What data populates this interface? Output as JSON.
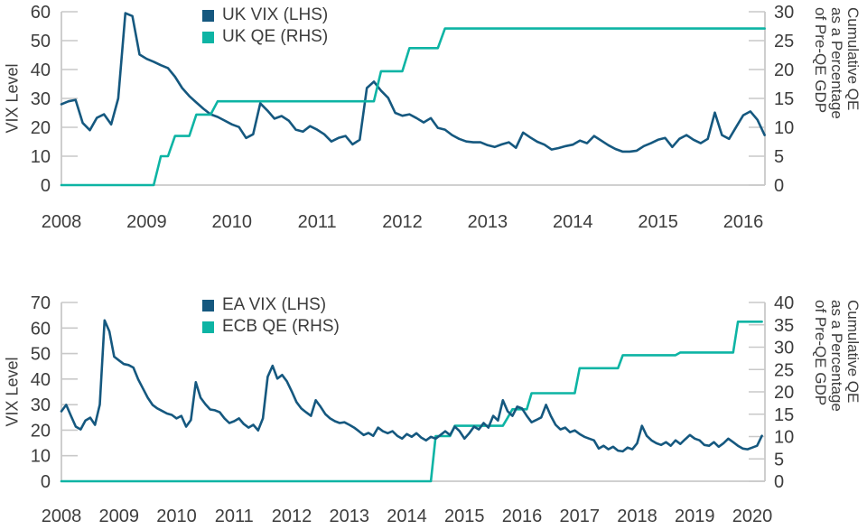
{
  "colors": {
    "vix_blue": "#15587f",
    "qe_teal": "#0db4a4",
    "axis_gray": "#c9c9c9",
    "text_dark": "#3d3d3d"
  },
  "chart_data": [
    {
      "type": "line",
      "title": "",
      "ylabel_left": "VIX Level",
      "ylabel_right_lines": [
        "Cumulative QE",
        "as a Percentage",
        "of Pre-QE GDP"
      ],
      "x_tick_labels": [
        "2008",
        "2009",
        "2010",
        "2011",
        "2012",
        "2013",
        "2014",
        "2015",
        "2016"
      ],
      "left_axis": {
        "min": 0,
        "max": 60,
        "ticks": [
          "60",
          "50",
          "40",
          "30",
          "20",
          "10",
          "0"
        ]
      },
      "right_axis": {
        "min": 0,
        "max": 30,
        "ticks": [
          "30",
          "25",
          "20",
          "15",
          "10",
          "5",
          "0"
        ]
      },
      "legend": [
        {
          "label": "UK VIX (LHS)",
          "color_key": "vix_blue"
        },
        {
          "label": "UK QE (RHS)",
          "color_key": "qe_teal"
        }
      ],
      "x_start": "2008-01",
      "x_step": "month",
      "series": [
        {
          "name": "UK VIX (LHS)",
          "axis": "left",
          "color_key": "vix_blue",
          "values": [
            28,
            29,
            29.5,
            21.5,
            19,
            23.3,
            24.5,
            21,
            30,
            59.5,
            58.5,
            45.2,
            43.7,
            42.7,
            41.5,
            40.5,
            37.5,
            33.6,
            30.8,
            28.6,
            26.4,
            24.5,
            23.6,
            22.3,
            21,
            20.1,
            16.3,
            17.6,
            28.3,
            25.8,
            23,
            23.9,
            22.3,
            19.2,
            18.5,
            20.4,
            19.2,
            17.6,
            15.1,
            16.3,
            17,
            14.1,
            15.7,
            33.6,
            35.8,
            32.7,
            30.2,
            25,
            24,
            24.5,
            23.2,
            21.7,
            23.2,
            19.8,
            19.2,
            17.3,
            16,
            15.1,
            14.8,
            14.8,
            13.8,
            13.2,
            14.1,
            14.8,
            12.9,
            18.2,
            16.5,
            15,
            14,
            12.3,
            12.8,
            13.5,
            14,
            15.4,
            14.5,
            17,
            15.4,
            13.8,
            12.5,
            11.6,
            11.6,
            11.9,
            13.5,
            14.5,
            15.7,
            16.3,
            13.2,
            16,
            17.3,
            15.7,
            14.5,
            16,
            25.1,
            17.3,
            16,
            20.1,
            24.2,
            25.5,
            22.6,
            17.3
          ]
        },
        {
          "name": "UK QE (RHS)",
          "axis": "right",
          "color_key": "qe_teal",
          "values": [
            0,
            0,
            0,
            0,
            0,
            0,
            0,
            0,
            0,
            0,
            0,
            0,
            0,
            0,
            5,
            5,
            8.5,
            8.5,
            8.5,
            12.2,
            12.2,
            12.2,
            14.5,
            14.5,
            14.5,
            14.5,
            14.5,
            14.5,
            14.5,
            14.5,
            14.5,
            14.5,
            14.5,
            14.5,
            14.5,
            14.5,
            14.5,
            14.5,
            14.5,
            14.5,
            14.5,
            14.5,
            14.5,
            14.5,
            14.5,
            19.7,
            19.7,
            19.7,
            19.7,
            23.7,
            23.7,
            23.7,
            23.7,
            23.7,
            27.1,
            27.1,
            27.1,
            27.1,
            27.1,
            27.1,
            27.1,
            27.1,
            27.1,
            27.1,
            27.1,
            27.1,
            27.1,
            27.1,
            27.1,
            27.1,
            27.1,
            27.1,
            27.1,
            27.1,
            27.1,
            27.1,
            27.1,
            27.1,
            27.1,
            27.1,
            27.1,
            27.1,
            27.1,
            27.1,
            27.1,
            27.1,
            27.1,
            27.1,
            27.1,
            27.1,
            27.1,
            27.1,
            27.1,
            27.1,
            27.1,
            27.1,
            27.1,
            27.1,
            27.1,
            27.1
          ]
        }
      ]
    },
    {
      "type": "line",
      "title": "",
      "ylabel_left": "VIX Level",
      "ylabel_right_lines": [
        "Cumulative QE",
        "as a Percentage",
        "of Pre-QE GDP"
      ],
      "x_tick_labels": [
        "2008",
        "2009",
        "2010",
        "2011",
        "2012",
        "2013",
        "2014",
        "2015",
        "2016",
        "2017",
        "2018",
        "2019",
        "2020"
      ],
      "left_axis": {
        "min": 0,
        "max": 70,
        "ticks": [
          "70",
          "60",
          "50",
          "40",
          "30",
          "20",
          "10",
          "0"
        ]
      },
      "right_axis": {
        "min": 0,
        "max": 40,
        "ticks": [
          "40",
          "35",
          "30",
          "25",
          "20",
          "15",
          "10",
          "5",
          "0"
        ]
      },
      "legend": [
        {
          "label": "EA VIX (LHS)",
          "color_key": "vix_blue"
        },
        {
          "label": "ECB QE (RHS)",
          "color_key": "qe_teal"
        }
      ],
      "x_start": "2008-01",
      "x_step": "month",
      "series": [
        {
          "name": "ECB QE (RHS)",
          "axis": "right",
          "color_key": "qe_teal",
          "values": [
            0,
            0,
            0,
            0,
            0,
            0,
            0,
            0,
            0,
            0,
            0,
            0,
            0,
            0,
            0,
            0,
            0,
            0,
            0,
            0,
            0,
            0,
            0,
            0,
            0,
            0,
            0,
            0,
            0,
            0,
            0,
            0,
            0,
            0,
            0,
            0,
            0,
            0,
            0,
            0,
            0,
            0,
            0,
            0,
            0,
            0,
            0,
            0,
            0,
            0,
            0,
            0,
            0,
            0,
            0,
            0,
            0,
            0,
            0,
            0,
            0,
            0,
            0,
            0,
            0,
            0,
            0,
            0,
            0,
            0,
            0,
            0,
            0,
            0,
            0,
            0,
            0,
            0,
            10.1,
            10.1,
            10.1,
            10.1,
            12.4,
            12.4,
            12.4,
            12.4,
            12.4,
            12.4,
            12.4,
            12.4,
            12.4,
            12.4,
            12.4,
            14.2,
            16.1,
            16.1,
            16.1,
            16.1,
            19.7,
            19.7,
            19.7,
            19.7,
            19.7,
            19.7,
            19.7,
            19.7,
            19.7,
            19.7,
            25.3,
            25.3,
            25.3,
            25.3,
            25.3,
            25.3,
            25.3,
            25.3,
            25.3,
            28.2,
            28.2,
            28.2,
            28.2,
            28.2,
            28.2,
            28.2,
            28.2,
            28.2,
            28.2,
            28.2,
            28.2,
            28.8,
            28.8,
            28.8,
            28.8,
            28.8,
            28.8,
            28.8,
            28.8,
            28.8,
            28.8,
            28.8,
            28.8,
            35.7,
            35.7,
            35.7,
            35.7,
            35.7,
            35.7
          ]
        },
        {
          "name": "EA VIX (LHS)",
          "axis": "left",
          "color_key": "vix_blue",
          "values": [
            27.4,
            29.9,
            25.6,
            21.4,
            20.3,
            23.8,
            24.9,
            22.1,
            30,
            63,
            58.7,
            48.8,
            47.3,
            45.9,
            45.5,
            44.5,
            39.9,
            36.3,
            32.7,
            29.9,
            28.5,
            27.5,
            26.5,
            26,
            24.6,
            25.6,
            21.4,
            24,
            38.8,
            32.7,
            30.2,
            28.1,
            27.8,
            27,
            24.6,
            22.8,
            23.5,
            24.6,
            22.4,
            21,
            22.1,
            19.9,
            24.6,
            40.9,
            45.2,
            40.2,
            41.6,
            39.1,
            35.2,
            31,
            28.5,
            27,
            25.6,
            31.7,
            29.2,
            26.3,
            24.6,
            23.5,
            22.8,
            23.1,
            22.1,
            21,
            19.6,
            18.1,
            18.9,
            17.8,
            21,
            19.6,
            18.8,
            19.6,
            17.8,
            16.7,
            18.5,
            17.4,
            18.8,
            17.1,
            16,
            17.4,
            16.7,
            18.1,
            19.6,
            18.1,
            21.4,
            19.6,
            16.7,
            18.8,
            21.4,
            20.3,
            22.8,
            21,
            25.6,
            23.8,
            31.7,
            27.4,
            25.6,
            29.2,
            28.5,
            25.6,
            23.1,
            24,
            25,
            29.9,
            25.6,
            22.1,
            20.3,
            21,
            19.2,
            19.9,
            18.5,
            17.4,
            16.7,
            16,
            12.8,
            13.9,
            12.5,
            13.5,
            12,
            11.7,
            13.2,
            12.5,
            14.9,
            21.7,
            17.8,
            16,
            14.9,
            14.2,
            15.3,
            13.9,
            16,
            14.6,
            16.4,
            18.1,
            16.7,
            16,
            14.2,
            13.9,
            15.3,
            13.5,
            14.9,
            16.7,
            15.3,
            13.9,
            12.8,
            12.5,
            13.2,
            13.9,
            17.8
          ]
        }
      ]
    }
  ]
}
